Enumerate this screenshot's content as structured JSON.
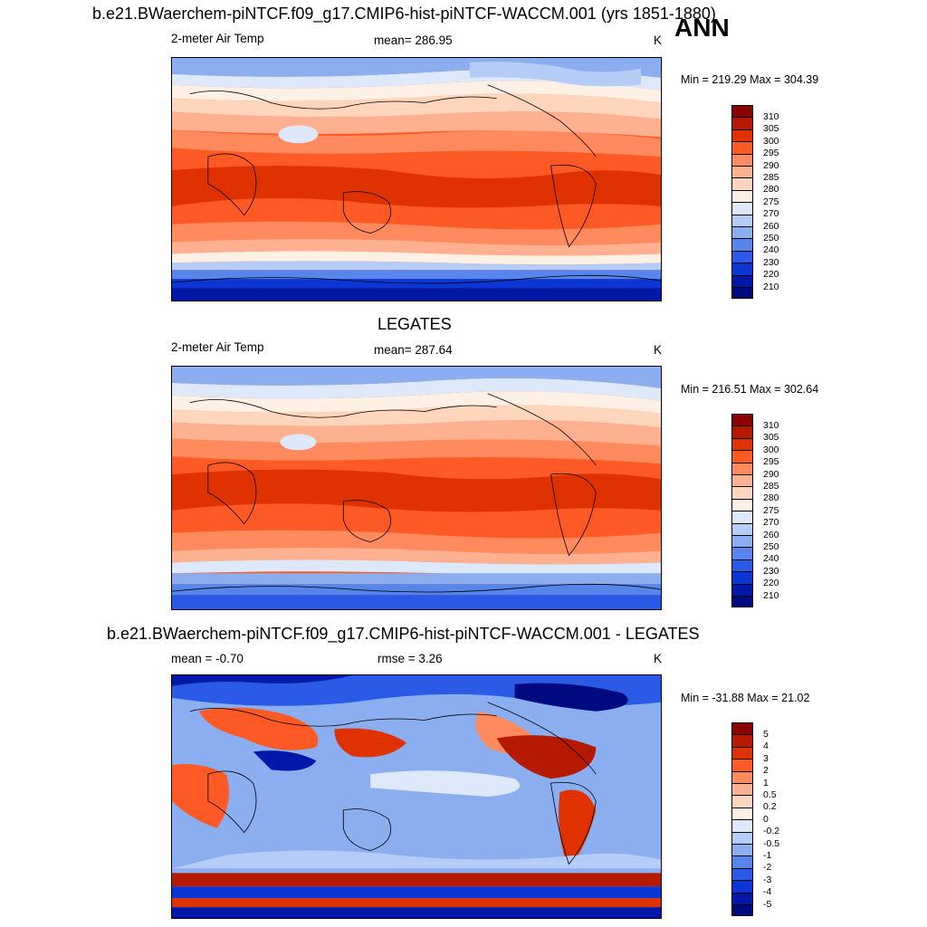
{
  "header": {
    "title": "b.e21.BWaerchem-piNTCF.f09_g17.CMIP6-hist-piNTCF-WACCM.001 (yrs 1851-1880)",
    "season": "ANN"
  },
  "panels": [
    {
      "variable": "2-meter Air Temp",
      "stat": "mean= 286.95",
      "units": "K",
      "minmax": "Min = 219.29 Max = 304.39",
      "colorbar_labels": [
        "310",
        "305",
        "300",
        "295",
        "290",
        "285",
        "280",
        "275",
        "270",
        "260",
        "250",
        "240",
        "230",
        "220",
        "210"
      ]
    },
    {
      "title": "LEGATES",
      "variable": "2-meter Air Temp",
      "stat": "mean= 287.64",
      "units": "K",
      "minmax": "Min = 216.51 Max = 302.64",
      "colorbar_labels": [
        "310",
        "305",
        "300",
        "295",
        "290",
        "285",
        "280",
        "275",
        "270",
        "260",
        "250",
        "240",
        "230",
        "220",
        "210"
      ]
    },
    {
      "title": "b.e21.BWaerchem-piNTCF.f09_g17.CMIP6-hist-piNTCF-WACCM.001 - LEGATES",
      "stat_left": "mean =  -0.70",
      "stat": "rmse =   3.26",
      "units": "K",
      "minmax": "Min = -31.88 Max =  21.02",
      "colorbar_labels": [
        "5",
        "4",
        "3",
        "2",
        "1",
        "0.5",
        "0.2",
        "0",
        "-0.2",
        "-0.5",
        "-1",
        "-2",
        "-3",
        "-4",
        "-5"
      ]
    }
  ],
  "colors": {
    "abs_scale": [
      "#8c0000",
      "#b51a00",
      "#e03200",
      "#ff5a26",
      "#ff8a5e",
      "#ffb090",
      "#ffd5bc",
      "#fff0e6",
      "#dde9fb",
      "#b5ccf7",
      "#8aaeef",
      "#5785ec",
      "#2a5ae6",
      "#0a36d6",
      "#0018a8",
      "#000a80"
    ],
    "diff_scale": [
      "#8c0000",
      "#b51a00",
      "#e03200",
      "#ff5a26",
      "#ff8a5e",
      "#ffb090",
      "#ffd5bc",
      "#fff0e6",
      "#dde9fb",
      "#b5ccf7",
      "#8aaeef",
      "#5785ec",
      "#2a5ae6",
      "#0a36d6",
      "#0018a8",
      "#000a80"
    ]
  }
}
